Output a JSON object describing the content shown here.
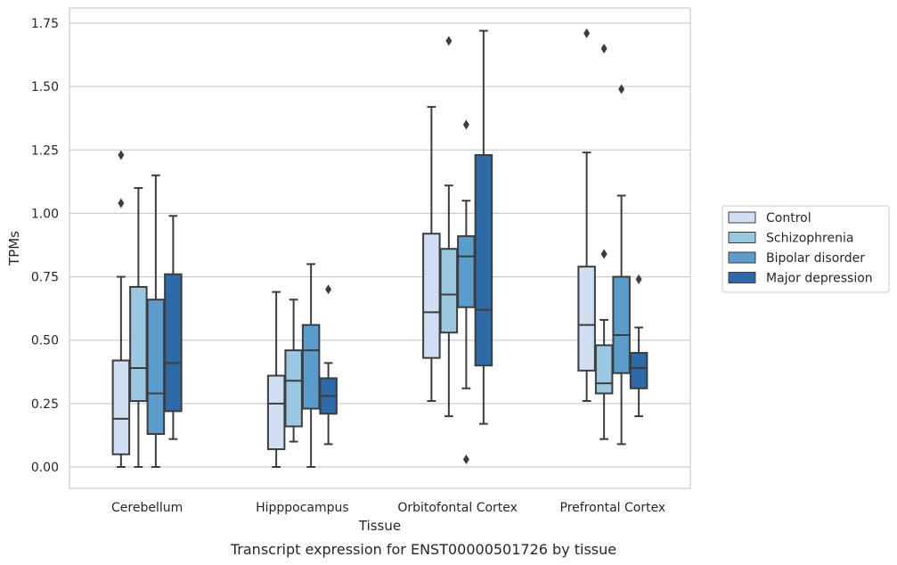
{
  "chart_data": {
    "type": "box",
    "xlabel": "Tissue",
    "ylabel": "TPMs",
    "caption": "Transcript expression for ENST00000501726 by tissue",
    "ylim": [
      -0.08,
      1.81
    ],
    "yticks": [
      "0.00",
      "0.25",
      "0.50",
      "0.75",
      "1.00",
      "1.25",
      "1.50",
      "1.75"
    ],
    "grid": "horizontal",
    "legend_position": "right",
    "categories": [
      "Cerebellum",
      "Hipppocampus",
      "Orbitofontal Cortex",
      "Prefrontal Cortex"
    ],
    "series": [
      {
        "name": "Control",
        "color": "#d0e0f2",
        "boxes": [
          {
            "whislo": 0.0,
            "q1": 0.05,
            "med": 0.19,
            "q3": 0.42,
            "whishi": 0.75,
            "fliers": [
              1.04,
              1.23
            ]
          },
          {
            "whislo": 0.0,
            "q1": 0.07,
            "med": 0.25,
            "q3": 0.36,
            "whishi": 0.69,
            "fliers": []
          },
          {
            "whislo": 0.26,
            "q1": 0.43,
            "med": 0.61,
            "q3": 0.92,
            "whishi": 1.42,
            "fliers": []
          },
          {
            "whislo": 0.26,
            "q1": 0.38,
            "med": 0.56,
            "q3": 0.79,
            "whishi": 1.24,
            "fliers": [
              1.71
            ]
          }
        ]
      },
      {
        "name": "Schizophrenia",
        "color": "#9ac8e0",
        "boxes": [
          {
            "whislo": 0.0,
            "q1": 0.26,
            "med": 0.39,
            "q3": 0.71,
            "whishi": 1.1,
            "fliers": []
          },
          {
            "whislo": 0.1,
            "q1": 0.16,
            "med": 0.34,
            "q3": 0.46,
            "whishi": 0.66,
            "fliers": []
          },
          {
            "whislo": 0.2,
            "q1": 0.53,
            "med": 0.68,
            "q3": 0.86,
            "whishi": 1.11,
            "fliers": [
              1.68
            ]
          },
          {
            "whislo": 0.11,
            "q1": 0.29,
            "med": 0.33,
            "q3": 0.48,
            "whishi": 0.58,
            "fliers": [
              0.84,
              1.65
            ]
          }
        ]
      },
      {
        "name": "Bipolar disorder",
        "color": "#5a9dcc",
        "boxes": [
          {
            "whislo": 0.0,
            "q1": 0.13,
            "med": 0.29,
            "q3": 0.66,
            "whishi": 1.15,
            "fliers": []
          },
          {
            "whislo": 0.0,
            "q1": 0.23,
            "med": 0.46,
            "q3": 0.56,
            "whishi": 0.8,
            "fliers": []
          },
          {
            "whislo": 0.31,
            "q1": 0.63,
            "med": 0.83,
            "q3": 0.91,
            "whishi": 1.05,
            "fliers": [
              0.03,
              1.35
            ]
          },
          {
            "whislo": 0.09,
            "q1": 0.37,
            "med": 0.52,
            "q3": 0.75,
            "whishi": 1.07,
            "fliers": [
              1.49
            ]
          }
        ]
      },
      {
        "name": "Major depression",
        "color": "#2c6aa8",
        "boxes": [
          {
            "whislo": 0.11,
            "q1": 0.22,
            "med": 0.41,
            "q3": 0.76,
            "whishi": 0.99,
            "fliers": []
          },
          {
            "whislo": 0.09,
            "q1": 0.21,
            "med": 0.28,
            "q3": 0.35,
            "whishi": 0.41,
            "fliers": [
              0.7
            ]
          },
          {
            "whislo": 0.17,
            "q1": 0.4,
            "med": 0.62,
            "q3": 1.23,
            "whishi": 1.72,
            "fliers": []
          },
          {
            "whislo": 0.2,
            "q1": 0.31,
            "med": 0.39,
            "q3": 0.45,
            "whishi": 0.55,
            "fliers": [
              0.74
            ]
          }
        ]
      }
    ]
  }
}
